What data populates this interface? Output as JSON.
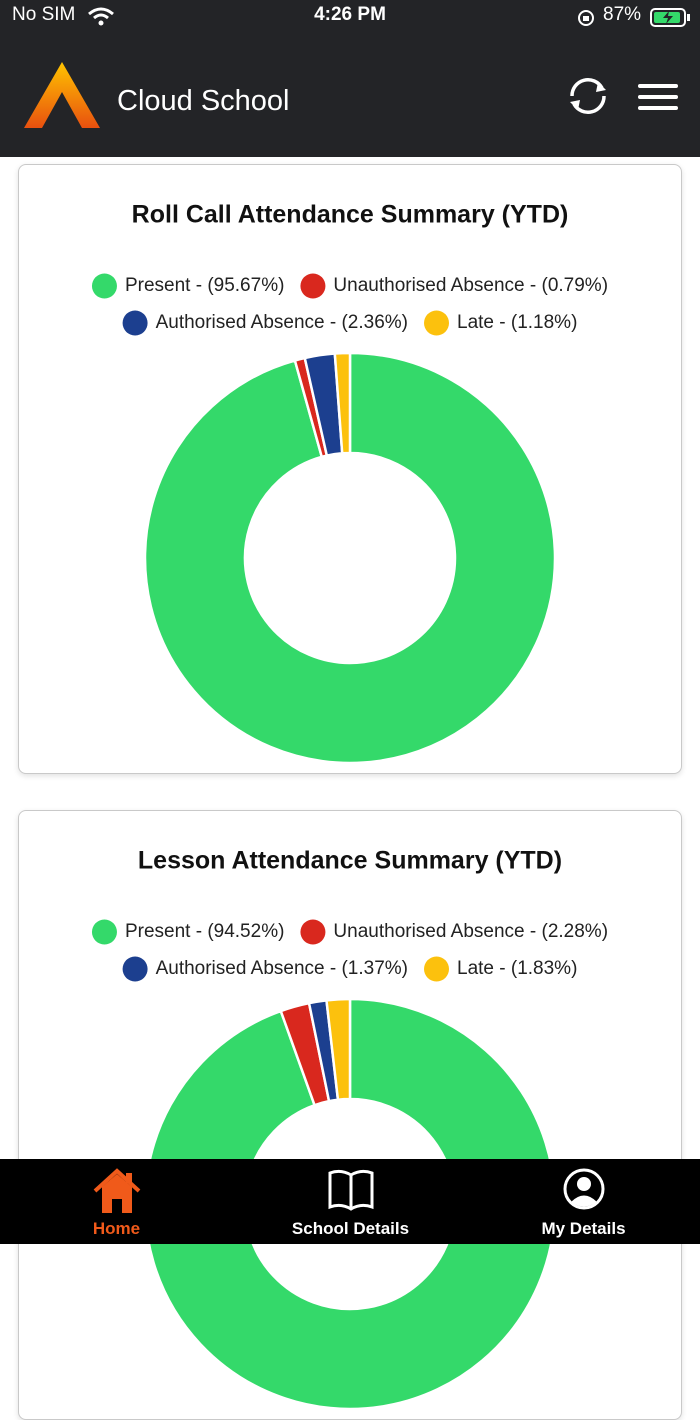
{
  "status_bar": {
    "carrier": "No SIM",
    "time": "4:26 PM",
    "battery": "87%"
  },
  "header": {
    "title": "Cloud School"
  },
  "chart_data": [
    {
      "type": "pie",
      "donut": true,
      "title": "Roll Call Attendance Summary (YTD)",
      "categories": [
        "Present - (95.67%)",
        "Unauthorised Absence - (0.79%)",
        "Authorised Absence - (2.36%)",
        "Late - (1.18%)"
      ],
      "values": [
        95.67,
        0.79,
        2.36,
        1.18
      ],
      "colors": [
        "#34d96a",
        "#d9281e",
        "#1c3f8f",
        "#fcc10d"
      ]
    },
    {
      "type": "pie",
      "donut": true,
      "title": "Lesson Attendance Summary (YTD)",
      "categories": [
        "Present - (94.52%)",
        "Unauthorised Absence - (2.28%)",
        "Authorised Absence - (1.37%)",
        "Late - (1.83%)"
      ],
      "values": [
        94.52,
        2.28,
        1.37,
        1.83
      ],
      "colors": [
        "#34d96a",
        "#d9281e",
        "#1c3f8f",
        "#fcc10d"
      ]
    }
  ],
  "tab_bar": {
    "items": [
      {
        "label": "Home",
        "active": true
      },
      {
        "label": "School Details",
        "active": false
      },
      {
        "label": "My Details",
        "active": false
      }
    ]
  }
}
